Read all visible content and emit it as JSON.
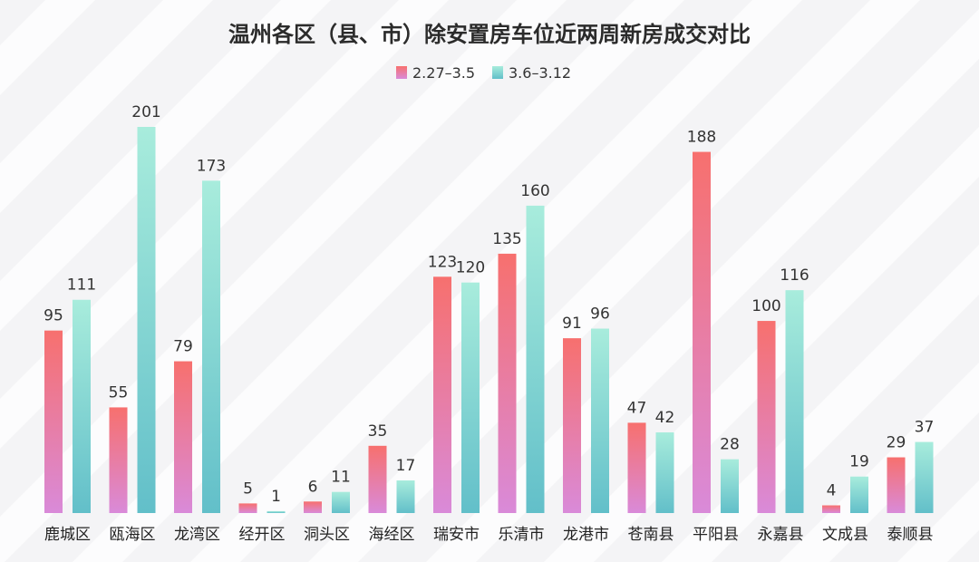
{
  "chart_data": {
    "type": "bar",
    "title": "温州各区（县、市）除安置房车位近两周新房成交对比",
    "categories": [
      "鹿城区",
      "瓯海区",
      "龙湾区",
      "经开区",
      "洞头区",
      "海经区",
      "瑞安市",
      "乐清市",
      "龙港市",
      "苍南县",
      "平阳县",
      "永嘉县",
      "文成县",
      "泰顺县"
    ],
    "series": [
      {
        "name": "2.27–3.5",
        "values": [
          95,
          55,
          79,
          5,
          6,
          35,
          123,
          135,
          91,
          47,
          188,
          100,
          4,
          29
        ],
        "gradient": [
          "#f7706e",
          "#d98ad9"
        ]
      },
      {
        "name": "3.6–3.12",
        "values": [
          111,
          201,
          173,
          1,
          11,
          17,
          120,
          160,
          96,
          42,
          28,
          116,
          19,
          37
        ],
        "gradient": [
          "#a8ecdc",
          "#62bfc9"
        ]
      }
    ],
    "ylim": [
      0,
      201
    ],
    "legend_position": "top-center",
    "grid": false
  }
}
